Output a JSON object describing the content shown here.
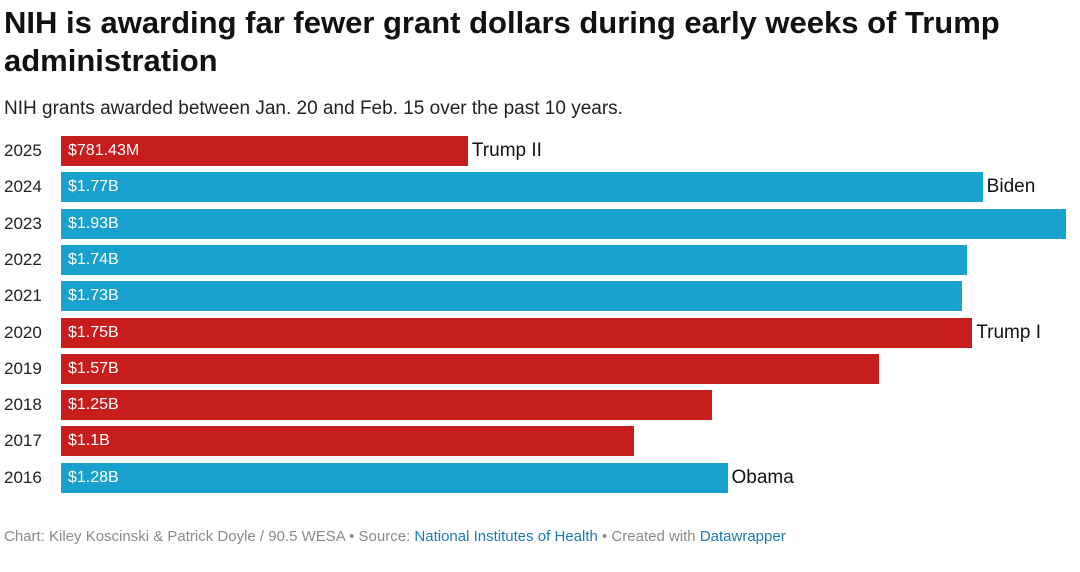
{
  "chart_data": {
    "type": "bar",
    "orientation": "horizontal",
    "title": "NIH is awarding far fewer grant dollars during early weeks of Trump administration",
    "subtitle": "NIH grants awarded between Jan. 20 and Feb. 15 over the past 10 years.",
    "categories": [
      "2025",
      "2024",
      "2023",
      "2022",
      "2021",
      "2020",
      "2019",
      "2018",
      "2017",
      "2016"
    ],
    "values": [
      0.78143,
      1.77,
      1.93,
      1.74,
      1.73,
      1.75,
      1.57,
      1.25,
      1.1,
      1.28
    ],
    "value_labels": [
      "$781.43M",
      "$1.77B",
      "$1.93B",
      "$1.74B",
      "$1.73B",
      "$1.75B",
      "$1.57B",
      "$1.25B",
      "$1.1B",
      "$1.28B"
    ],
    "bar_party": [
      "red",
      "blue",
      "blue",
      "blue",
      "blue",
      "red",
      "red",
      "red",
      "red",
      "blue"
    ],
    "annotations": [
      {
        "category": "2025",
        "text": "Trump II"
      },
      {
        "category": "2024",
        "text": "Biden"
      },
      {
        "category": "2020",
        "text": "Trump I"
      },
      {
        "category": "2016",
        "text": "Obama"
      }
    ],
    "xlim": [
      0,
      1.93
    ],
    "grid": false,
    "legend": "none"
  },
  "colors": {
    "red": "#c71e1d",
    "blue": "#18a1cd"
  },
  "footer": {
    "credit": "Chart: Kiley Koscinski & Patrick Doyle / 90.5 WESA • Source: ",
    "source_link": "National Institutes of Health",
    "created": " • Created with ",
    "tool_link": "Datawrapper"
  }
}
